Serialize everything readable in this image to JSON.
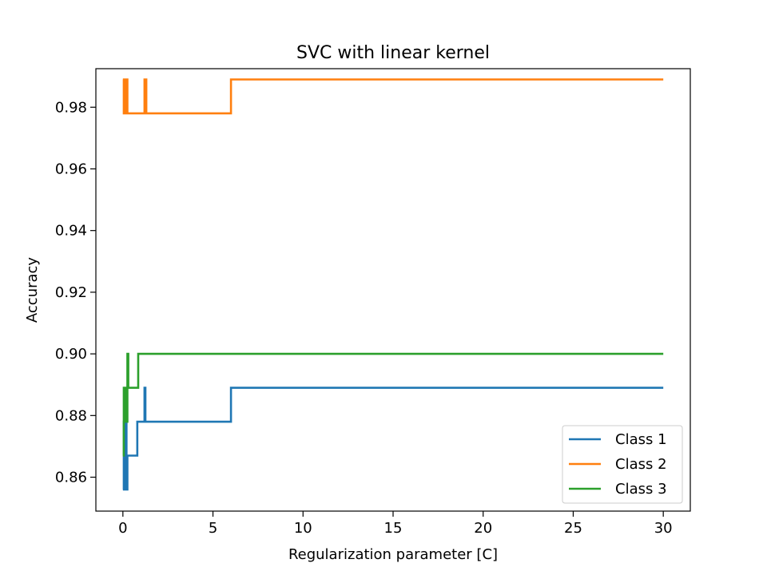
{
  "chart_data": {
    "type": "line",
    "title": "SVC with linear kernel",
    "xlabel": "Regularization parameter [C]",
    "ylabel": "Accuracy",
    "xlim": [
      -1.5,
      31.5
    ],
    "ylim": [
      0.849,
      0.9925
    ],
    "xticks": [
      0,
      5,
      10,
      15,
      20,
      25,
      30
    ],
    "xtick_labels": [
      "0",
      "5",
      "10",
      "15",
      "20",
      "25",
      "30"
    ],
    "yticks": [
      0.86,
      0.88,
      0.9,
      0.92,
      0.94,
      0.96,
      0.98
    ],
    "ytick_labels": [
      "0.86",
      "0.88",
      "0.90",
      "0.92",
      "0.94",
      "0.96",
      "0.98"
    ],
    "grid": false,
    "legend_position": "lower-right",
    "step_style": "post",
    "series": [
      {
        "name": "Class 1",
        "color": "#1f77b4",
        "x": [
          0.0,
          0.05,
          0.1,
          0.15,
          0.2,
          0.25,
          0.3,
          0.8,
          1.2,
          1.25,
          1.3,
          6.0,
          30.0
        ],
        "y": [
          0.856,
          0.878,
          0.856,
          0.878,
          0.856,
          0.867,
          0.867,
          0.878,
          0.889,
          0.878,
          0.878,
          0.889,
          0.889
        ]
      },
      {
        "name": "Class 2",
        "color": "#ff7f0e",
        "x": [
          0.0,
          0.05,
          0.1,
          0.15,
          0.2,
          0.25,
          1.15,
          1.2,
          1.25,
          1.3,
          6.0,
          30.0
        ],
        "y": [
          0.989,
          0.978,
          0.989,
          0.978,
          0.989,
          0.978,
          0.978,
          0.989,
          0.989,
          0.978,
          0.989,
          0.989
        ]
      },
      {
        "name": "Class 3",
        "color": "#2ca02c",
        "x": [
          0.0,
          0.05,
          0.1,
          0.15,
          0.2,
          0.25,
          0.3,
          0.85,
          30.0
        ],
        "y": [
          0.867,
          0.889,
          0.878,
          0.889,
          0.878,
          0.9,
          0.889,
          0.9,
          0.9
        ]
      }
    ]
  }
}
